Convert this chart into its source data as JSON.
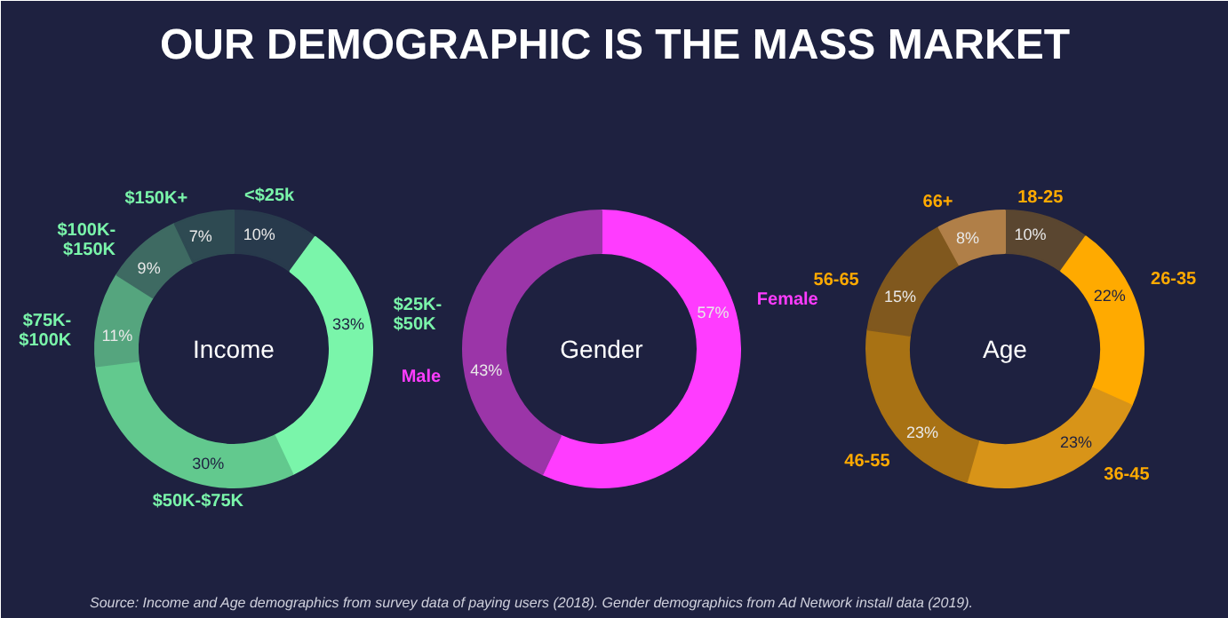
{
  "chart_data": [
    {
      "type": "donut",
      "title": "Income",
      "annotations": [
        "OUR DEMOGRAPHIC IS THE MASS MARKET"
      ],
      "categories": [
        "<$25k",
        "$25K-\n$50K",
        "$50K-$75K",
        "$75K-\n$100K",
        "$100K-\n$150K",
        "$150K+"
      ],
      "values": [
        10,
        33,
        30,
        11,
        9,
        7
      ],
      "value_labels": [
        "10%",
        "33%",
        "30%",
        "11%",
        "9%",
        "7%"
      ],
      "colors": [
        "#283a4c",
        "#7af5aa",
        "#62c98e",
        "#55a57e",
        "#3e6a62",
        "#2e4a52"
      ]
    },
    {
      "type": "donut",
      "title": "Gender",
      "categories": [
        "Female",
        "Male"
      ],
      "values": [
        57,
        43
      ],
      "value_labels": [
        "57%",
        "43%"
      ],
      "colors": [
        "#ff3cff",
        "#9b35a8"
      ]
    },
    {
      "type": "donut",
      "title": "Age",
      "annotations": [
        "Source: Income and Age demographics from survey data of paying users (2018).  Gender demographics from Ad Network install data (2019)."
      ],
      "categories": [
        "18-25",
        "26-35",
        "36-45",
        "46-55",
        "56-65",
        "66+"
      ],
      "values": [
        10,
        22,
        23,
        23,
        15,
        8
      ],
      "value_labels": [
        "10%",
        "22%",
        "23%",
        "23%",
        "15%",
        "8%"
      ],
      "colors": [
        "#5a4630",
        "#ffaa00",
        "#d89418",
        "#a87214",
        "#80581e",
        "#b07f48"
      ]
    }
  ]
}
